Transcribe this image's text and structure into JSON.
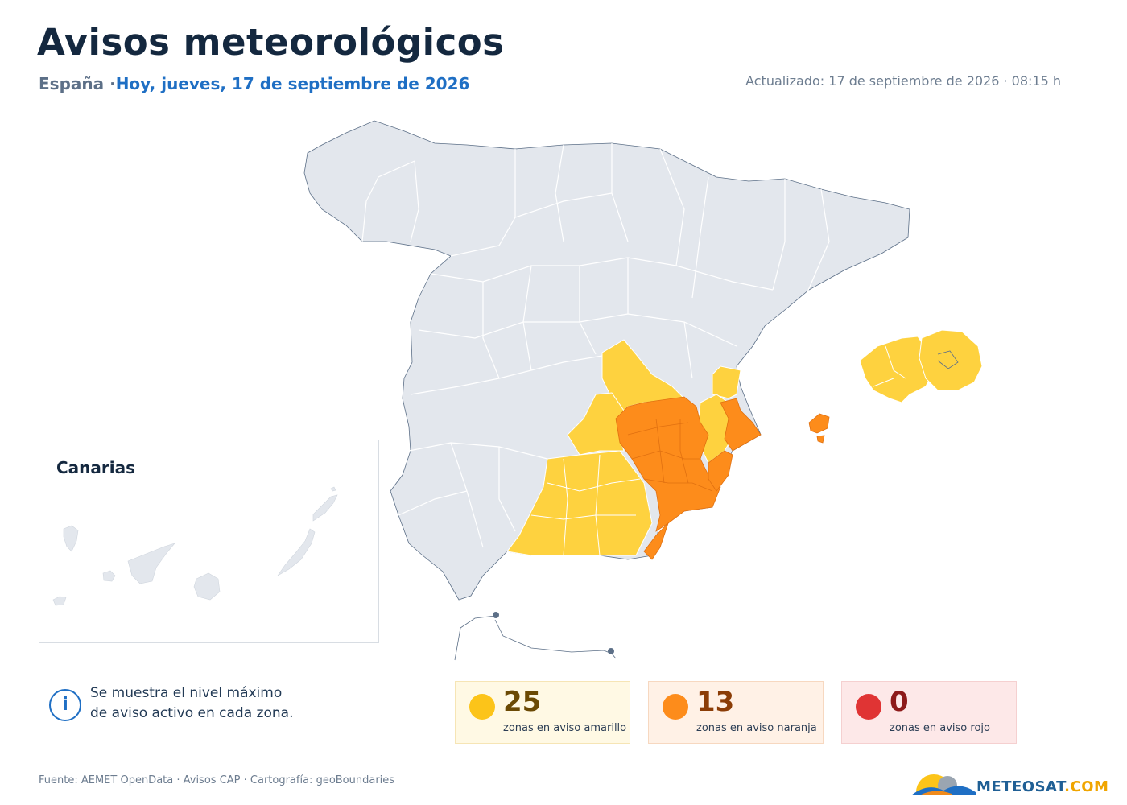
{
  "header": {
    "title": "Avisos meteorológicos",
    "country": "España ·",
    "date": "Hoy, jueves, 17 de septiembre de 2026",
    "updated": "Actualizado: 17 de septiembre de 2026 · 08:15 h"
  },
  "map": {
    "inset_label": "Canarias",
    "colors": {
      "land": "#e3e7ed",
      "border": "#ffffff",
      "yellow": "#fed23f",
      "orange": "#fd8c1b",
      "coast": "#5c6f87"
    }
  },
  "info": {
    "icon": "info-icon",
    "line1": "Se muestra el nivel máximo",
    "line2": "de aviso activo en cada zona."
  },
  "summary": [
    {
      "level": "yellow",
      "count": "25",
      "label": "zonas en aviso amarillo",
      "color": "#fcc419"
    },
    {
      "level": "orange",
      "count": "13",
      "label": "zonas en aviso naranja",
      "color": "#fd8c1b"
    },
    {
      "level": "red",
      "count": "0",
      "label": "zonas en aviso rojo",
      "color": "#e03434"
    }
  ],
  "footer": {
    "source": "Fuente: AEMET OpenData · Avisos CAP · Cartografía: geoBoundaries",
    "logo_main": "METEOSAT",
    "logo_suffix": ".COM"
  }
}
